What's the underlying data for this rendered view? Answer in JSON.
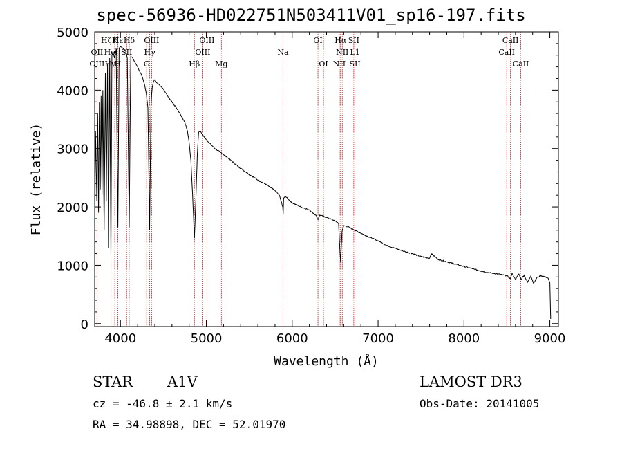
{
  "chart_data": {
    "type": "line",
    "title": "spec-56936-HD022751N503411V01_sp16-197.fits",
    "xlabel": "Wavelength (Å)",
    "ylabel": "Flux (relative)",
    "xlim": [
      3700,
      9100
    ],
    "ylim": [
      -50,
      5000
    ],
    "xticks": [
      4000,
      5000,
      6000,
      7000,
      8000,
      9000
    ],
    "yticks": [
      0,
      1000,
      2000,
      3000,
      4000,
      5000
    ],
    "series": [
      {
        "name": "flux",
        "x": [
          3700,
          3710,
          3725,
          3735,
          3745,
          3755,
          3765,
          3775,
          3785,
          3795,
          3810,
          3825,
          3835,
          3850,
          3860,
          3875,
          3889,
          3900,
          3915,
          3930,
          3950,
          3970,
          3985,
          4000,
          4020,
          4040,
          4060,
          4080,
          4102,
          4120,
          4140,
          4160,
          4180,
          4200,
          4220,
          4240,
          4260,
          4280,
          4300,
          4320,
          4340,
          4355,
          4370,
          4385,
          4400,
          4420,
          4440,
          4460,
          4480,
          4500,
          4550,
          4600,
          4650,
          4700,
          4750,
          4780,
          4800,
          4820,
          4840,
          4861,
          4880,
          4895,
          4910,
          4930,
          4950,
          5000,
          5100,
          5200,
          5300,
          5400,
          5500,
          5600,
          5700,
          5800,
          5850,
          5890,
          5895,
          5900,
          5920,
          6000,
          6100,
          6200,
          6280,
          6300,
          6320,
          6400,
          6500,
          6540,
          6563,
          6580,
          6600,
          6650,
          6700,
          6800,
          6900,
          7000,
          7100,
          7200,
          7300,
          7400,
          7500,
          7600,
          7620,
          7700,
          7800,
          7900,
          8000,
          8100,
          8200,
          8300,
          8400,
          8500,
          8540,
          8560,
          8600,
          8640,
          8665,
          8700,
          8740,
          8780,
          8810,
          8850,
          8900,
          8950,
          8980,
          9000,
          9010
        ],
        "y": [
          1300,
          3300,
          2100,
          3600,
          1900,
          3800,
          2300,
          3900,
          2200,
          4000,
          1600,
          4300,
          2100,
          4450,
          1300,
          4550,
          1150,
          4600,
          4650,
          4550,
          4700,
          1650,
          4720,
          4750,
          4730,
          4700,
          4680,
          4550,
          1650,
          4580,
          4560,
          4500,
          4450,
          4400,
          4330,
          4280,
          4200,
          4100,
          3950,
          3700,
          1610,
          3750,
          4050,
          4150,
          4180,
          4130,
          4110,
          4080,
          4050,
          4020,
          3900,
          3800,
          3700,
          3580,
          3450,
          3300,
          3100,
          2800,
          2200,
          1470,
          2200,
          2900,
          3280,
          3300,
          3250,
          3150,
          3000,
          2900,
          2780,
          2660,
          2560,
          2460,
          2380,
          2280,
          2200,
          2000,
          1870,
          2150,
          2180,
          2070,
          2000,
          1950,
          1850,
          1780,
          1860,
          1820,
          1760,
          1720,
          1050,
          1580,
          1680,
          1660,
          1620,
          1550,
          1480,
          1420,
          1340,
          1290,
          1240,
          1200,
          1150,
          1120,
          1200,
          1100,
          1060,
          1020,
          980,
          940,
          900,
          870,
          850,
          820,
          770,
          860,
          760,
          850,
          760,
          830,
          710,
          820,
          690,
          790,
          820,
          800,
          780,
          700,
          80
        ]
      }
    ],
    "line_markers": [
      {
        "label": "Hα",
        "x": 6563,
        "row": 1,
        "tick": true
      },
      {
        "label": "NII",
        "x": 6583,
        "row": 2,
        "tick": true
      },
      {
        "label": "NII",
        "x": 6548,
        "row": 3,
        "tick": true
      },
      {
        "label": "SII",
        "x": 6717,
        "row": 1,
        "tick": true
      },
      {
        "label": "L1",
        "x": 6731,
        "row": 2,
        "tick": true
      },
      {
        "label": "SII",
        "x": 6731,
        "row": 3,
        "tick": false
      },
      {
        "label": "OI",
        "x": 6300,
        "row": 1,
        "tick": true
      },
      {
        "label": "OI",
        "x": 6364,
        "row": 3,
        "tick": true
      },
      {
        "label": "Na",
        "x": 5893,
        "row": 2,
        "tick": true
      },
      {
        "label": "Mg",
        "x": 5175,
        "row": 3,
        "tick": true
      },
      {
        "label": "OIII",
        "x": 5007,
        "row": 1,
        "tick": true
      },
      {
        "label": "OIII",
        "x": 4959,
        "row": 2,
        "tick": true
      },
      {
        "label": "Hβ",
        "x": 4861,
        "row": 3,
        "tick": true
      },
      {
        "label": "OIII",
        "x": 4363,
        "row": 1,
        "tick": true
      },
      {
        "label": "Hγ",
        "x": 4340,
        "row": 2,
        "tick": true
      },
      {
        "label": "G",
        "x": 4305,
        "row": 3,
        "tick": true
      },
      {
        "label": "Hδ",
        "x": 4102,
        "row": 1,
        "tick": true
      },
      {
        "label": "SII",
        "x": 4072,
        "row": 2,
        "tick": true
      },
      {
        "label": "Hε",
        "x": 3970,
        "row": 1,
        "tick": true
      },
      {
        "label": "K",
        "x": 3934,
        "row": 1,
        "tick": true
      },
      {
        "label": "H",
        "x": 3968,
        "row": 3,
        "tick": false
      },
      {
        "label": "Hel",
        "x": 3889,
        "row": 2,
        "tick": true
      },
      {
        "label": "Hy",
        "x": 3880,
        "row": 3,
        "tick": false
      },
      {
        "label": "Hζ",
        "x": 3835,
        "row": 1,
        "tick": false
      },
      {
        "label": "OII",
        "x": 3727,
        "row": 2,
        "tick": true
      },
      {
        "label": "OIII",
        "x": 3727,
        "row": 3,
        "tick": false
      },
      {
        "label": "CaII",
        "x": 8542,
        "row": 1,
        "tick": true
      },
      {
        "label": "CaII",
        "x": 8498,
        "row": 2,
        "tick": true
      },
      {
        "label": "CaII",
        "x": 8662,
        "row": 3,
        "tick": true
      }
    ]
  },
  "info": {
    "class": "STAR",
    "subclass": "A1V",
    "survey": "LAMOST DR3",
    "cz": "cz = -46.8 ± 2.1 km/s",
    "obs_date": "Obs-Date: 20141005",
    "coords": "RA =  34.98898, DEC =  52.01970"
  }
}
